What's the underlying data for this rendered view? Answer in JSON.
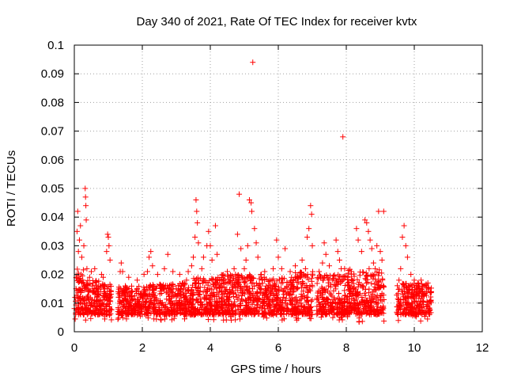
{
  "chart_data": {
    "type": "scatter",
    "title": "Day 340 of 2021, Rate Of TEC Index for receiver kvtx",
    "xlabel": "GPS time / hours",
    "ylabel": "ROTI / TECUs",
    "xlim": [
      0,
      12
    ],
    "ylim": [
      0,
      0.1
    ],
    "x_ticks": [
      "0",
      "2",
      "4",
      "6",
      "8",
      "10",
      "12"
    ],
    "y_ticks": [
      "0",
      "0.01",
      "0.02",
      "0.03",
      "0.04",
      "0.05",
      "0.06",
      "0.07",
      "0.08",
      "0.09",
      "0.1"
    ],
    "grid": true,
    "marker": "+",
    "color": "#ff0000",
    "data_gaps_hours": [
      [
        1.1,
        1.28
      ],
      [
        7.02,
        7.12
      ],
      [
        9.12,
        9.48
      ]
    ],
    "points": [
      [
        0.02,
        0.012
      ],
      [
        0.05,
        0.015
      ],
      [
        0.08,
        0.035
      ],
      [
        0.1,
        0.042
      ],
      [
        0.12,
        0.028
      ],
      [
        0.15,
        0.032
      ],
      [
        0.18,
        0.037
      ],
      [
        0.2,
        0.02
      ],
      [
        0.22,
        0.026
      ],
      [
        0.25,
        0.018
      ],
      [
        0.28,
        0.03
      ],
      [
        0.3,
        0.016
      ],
      [
        0.32,
        0.05
      ],
      [
        0.33,
        0.047
      ],
      [
        0.34,
        0.044
      ],
      [
        0.35,
        0.039
      ],
      [
        0.37,
        0.022
      ],
      [
        0.4,
        0.014
      ],
      [
        0.45,
        0.019
      ],
      [
        0.5,
        0.021
      ],
      [
        0.55,
        0.017
      ],
      [
        0.6,
        0.022
      ],
      [
        0.7,
        0.013
      ],
      [
        0.8,
        0.02
      ],
      [
        0.85,
        0.019
      ],
      [
        0.95,
        0.028
      ],
      [
        0.98,
        0.034
      ],
      [
        1.0,
        0.033
      ],
      [
        1.02,
        0.03
      ],
      [
        1.05,
        0.025
      ],
      [
        1.35,
        0.021
      ],
      [
        1.38,
        0.024
      ],
      [
        1.42,
        0.021
      ],
      [
        1.5,
        0.016
      ],
      [
        1.6,
        0.019
      ],
      [
        1.7,
        0.014
      ],
      [
        1.85,
        0.018
      ],
      [
        2.0,
        0.013
      ],
      [
        2.05,
        0.02
      ],
      [
        2.15,
        0.021
      ],
      [
        2.2,
        0.026
      ],
      [
        2.25,
        0.028
      ],
      [
        2.3,
        0.023
      ],
      [
        2.45,
        0.02
      ],
      [
        2.55,
        0.016
      ],
      [
        2.65,
        0.022
      ],
      [
        2.75,
        0.027
      ],
      [
        2.9,
        0.021
      ],
      [
        3.0,
        0.015
      ],
      [
        3.1,
        0.02
      ],
      [
        3.2,
        0.017
      ],
      [
        3.3,
        0.018
      ],
      [
        3.35,
        0.021
      ],
      [
        3.45,
        0.023
      ],
      [
        3.5,
        0.026
      ],
      [
        3.55,
        0.033
      ],
      [
        3.58,
        0.046
      ],
      [
        3.6,
        0.042
      ],
      [
        3.62,
        0.038
      ],
      [
        3.65,
        0.031
      ],
      [
        3.75,
        0.022
      ],
      [
        3.8,
        0.026
      ],
      [
        3.9,
        0.03
      ],
      [
        3.95,
        0.035
      ],
      [
        4.0,
        0.03
      ],
      [
        4.05,
        0.025
      ],
      [
        4.15,
        0.037
      ],
      [
        4.2,
        0.027
      ],
      [
        4.3,
        0.016
      ],
      [
        4.4,
        0.018
      ],
      [
        4.5,
        0.021
      ],
      [
        4.6,
        0.017
      ],
      [
        4.7,
        0.022
      ],
      [
        4.8,
        0.034
      ],
      [
        4.85,
        0.048
      ],
      [
        4.9,
        0.029
      ],
      [
        5.0,
        0.022
      ],
      [
        5.05,
        0.025
      ],
      [
        5.1,
        0.03
      ],
      [
        5.15,
        0.046
      ],
      [
        5.2,
        0.045
      ],
      [
        5.22,
        0.042
      ],
      [
        5.25,
        0.094
      ],
      [
        5.3,
        0.036
      ],
      [
        5.35,
        0.031
      ],
      [
        5.4,
        0.026
      ],
      [
        5.5,
        0.02
      ],
      [
        5.6,
        0.021
      ],
      [
        5.75,
        0.018
      ],
      [
        5.85,
        0.022
      ],
      [
        5.95,
        0.032
      ],
      [
        6.0,
        0.026
      ],
      [
        6.1,
        0.022
      ],
      [
        6.2,
        0.029
      ],
      [
        6.35,
        0.021
      ],
      [
        6.5,
        0.023
      ],
      [
        6.6,
        0.019
      ],
      [
        6.7,
        0.025
      ],
      [
        6.8,
        0.022
      ],
      [
        6.85,
        0.033
      ],
      [
        6.9,
        0.036
      ],
      [
        6.95,
        0.044
      ],
      [
        6.98,
        0.041
      ],
      [
        7.0,
        0.03
      ],
      [
        7.2,
        0.021
      ],
      [
        7.3,
        0.024
      ],
      [
        7.35,
        0.031
      ],
      [
        7.4,
        0.027
      ],
      [
        7.5,
        0.023
      ],
      [
        7.6,
        0.018
      ],
      [
        7.7,
        0.032
      ],
      [
        7.75,
        0.028
      ],
      [
        7.8,
        0.025
      ],
      [
        7.85,
        0.022
      ],
      [
        7.9,
        0.068
      ],
      [
        7.95,
        0.022
      ],
      [
        8.05,
        0.019
      ],
      [
        8.15,
        0.021
      ],
      [
        8.3,
        0.036
      ],
      [
        8.35,
        0.032
      ],
      [
        8.45,
        0.028
      ],
      [
        8.55,
        0.039
      ],
      [
        8.6,
        0.038
      ],
      [
        8.65,
        0.035
      ],
      [
        8.7,
        0.032
      ],
      [
        8.75,
        0.029
      ],
      [
        8.8,
        0.024
      ],
      [
        8.85,
        0.022
      ],
      [
        8.9,
        0.03
      ],
      [
        8.95,
        0.042
      ],
      [
        9.0,
        0.028
      ],
      [
        9.05,
        0.025
      ],
      [
        9.1,
        0.042
      ],
      [
        9.55,
        0.018
      ],
      [
        9.6,
        0.022
      ],
      [
        9.65,
        0.033
      ],
      [
        9.7,
        0.037
      ],
      [
        9.75,
        0.03
      ],
      [
        9.8,
        0.026
      ],
      [
        9.9,
        0.02
      ],
      [
        10.0,
        0.018
      ],
      [
        10.1,
        0.017
      ],
      [
        10.2,
        0.018
      ],
      [
        10.3,
        0.016
      ],
      [
        10.4,
        0.017
      ],
      [
        10.5,
        0.014
      ]
    ],
    "bands": [
      [
        0.0,
        0.3,
        0.004,
        0.022
      ],
      [
        0.3,
        1.1,
        0.004,
        0.018
      ],
      [
        1.28,
        2.2,
        0.004,
        0.016
      ],
      [
        2.2,
        3.5,
        0.004,
        0.017
      ],
      [
        3.5,
        4.3,
        0.004,
        0.019
      ],
      [
        4.3,
        5.5,
        0.004,
        0.02
      ],
      [
        5.5,
        6.5,
        0.004,
        0.019
      ],
      [
        6.5,
        7.02,
        0.004,
        0.021
      ],
      [
        7.12,
        8.0,
        0.004,
        0.02
      ],
      [
        8.0,
        9.12,
        0.003,
        0.022
      ],
      [
        9.48,
        10.5,
        0.003,
        0.017
      ]
    ]
  }
}
